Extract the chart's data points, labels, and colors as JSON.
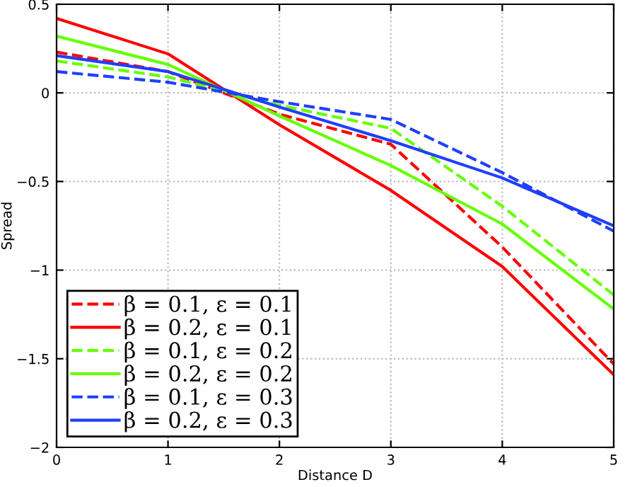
{
  "chart_data": {
    "type": "line",
    "xlabel": "Distance D",
    "ylabel": "Spread",
    "x": [
      0,
      1,
      2,
      3,
      4,
      5
    ],
    "series": [
      {
        "name": "β = 0.1, ε = 0.1",
        "color": "#ff0000",
        "line_style": "dashed",
        "values": [
          0.23,
          0.12,
          -0.12,
          -0.29,
          -0.87,
          -1.53
        ]
      },
      {
        "name": "β = 0.2, ε = 0.1",
        "color": "#ff0000",
        "line_style": "solid",
        "values": [
          0.42,
          0.22,
          -0.18,
          -0.55,
          -0.98,
          -1.59
        ]
      },
      {
        "name": "β = 0.1, ε = 0.2",
        "color": "#66ff00",
        "line_style": "dashed",
        "values": [
          0.18,
          0.09,
          -0.07,
          -0.2,
          -0.64,
          -1.14
        ]
      },
      {
        "name": "β = 0.2, ε = 0.2",
        "color": "#66ff00",
        "line_style": "solid",
        "values": [
          0.32,
          0.16,
          -0.13,
          -0.41,
          -0.74,
          -1.22
        ]
      },
      {
        "name": "β = 0.1, ε = 0.3",
        "color": "#1f3fff",
        "line_style": "dashed",
        "values": [
          0.12,
          0.06,
          -0.05,
          -0.15,
          -0.45,
          -0.78
        ]
      },
      {
        "name": "β = 0.2, ε = 0.3",
        "color": "#1f3fff",
        "line_style": "solid",
        "values": [
          0.21,
          0.12,
          -0.08,
          -0.27,
          -0.48,
          -0.75
        ]
      }
    ],
    "xlim": [
      0,
      5
    ],
    "xticks": [
      0,
      1,
      2,
      3,
      4,
      5
    ],
    "ylim": [
      -2,
      0.5
    ],
    "yticks": [
      -2,
      -1.5,
      -1,
      -0.5,
      0,
      0.5
    ],
    "grid": true,
    "legend": "bottom left",
    "marker": "none"
  }
}
